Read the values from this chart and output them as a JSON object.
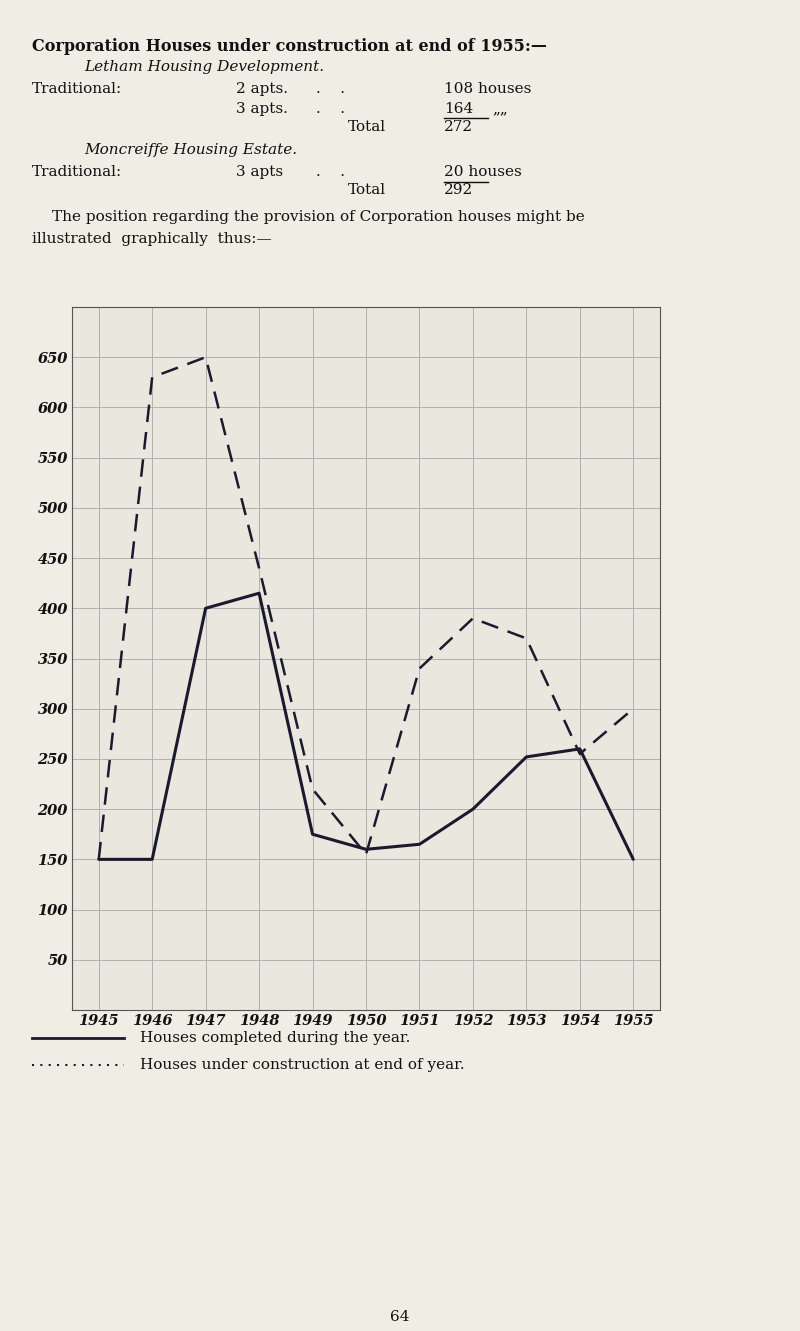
{
  "years": [
    1945,
    1946,
    1947,
    1948,
    1949,
    1950,
    1951,
    1952,
    1953,
    1954,
    1955
  ],
  "completed": [
    150,
    150,
    400,
    415,
    175,
    160,
    165,
    200,
    252,
    260,
    150
  ],
  "under_construction": [
    150,
    630,
    650,
    440,
    220,
    155,
    340,
    390,
    370,
    255,
    300
  ],
  "ylim": [
    0,
    700
  ],
  "yticks": [
    50,
    100,
    150,
    200,
    250,
    300,
    350,
    400,
    450,
    500,
    550,
    600,
    650
  ],
  "line_color": "#1a1a2e",
  "bg_color": "#f0ede4",
  "plot_bg_color": "#eae7de",
  "grid_color": "#b0b0b0",
  "legend_solid": "Houses completed during the year.",
  "legend_dashed": "Houses under construction at end of year.",
  "page_number": "64",
  "dot_pattern": ". . . . . . . . . . ."
}
